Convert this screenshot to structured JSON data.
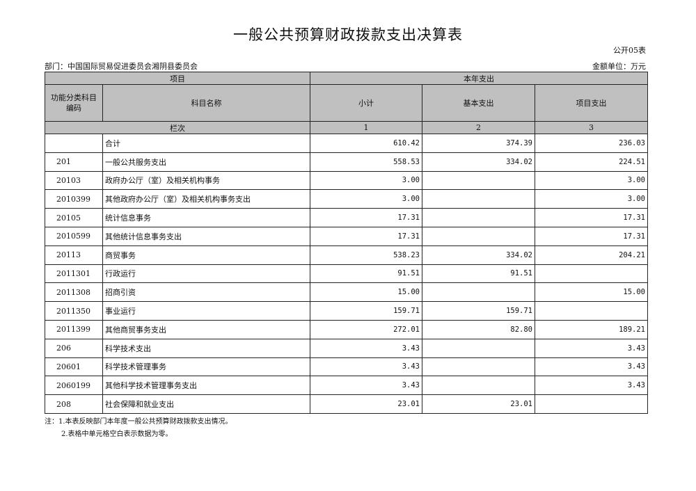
{
  "title": "一般公共预算财政拨款支出决算表",
  "table_code": "公开05表",
  "department": "部门：中国国际贸易促进委员会湘阴县委员会",
  "unit": "金额单位：万元",
  "header": {
    "project": "项目",
    "current_year": "本年支出",
    "func_code": "功能分类科目编码",
    "subject_name": "科目名称",
    "subtotal": "小计",
    "basic": "基本支出",
    "project_exp": "项目支出",
    "column_index": "栏次",
    "col1": "1",
    "col2": "2",
    "col3": "3"
  },
  "rows": [
    {
      "code": "",
      "name": "合计",
      "subtotal": "610.42",
      "basic": "374.39",
      "project": "236.03"
    },
    {
      "code": "201",
      "name": "一般公共服务支出",
      "subtotal": "558.53",
      "basic": "334.02",
      "project": "224.51"
    },
    {
      "code": "20103",
      "name": "政府办公厅（室）及相关机构事务",
      "subtotal": "3.00",
      "basic": "",
      "project": "3.00"
    },
    {
      "code": "2010399",
      "name": "其他政府办公厅（室）及相关机构事务支出",
      "subtotal": "3.00",
      "basic": "",
      "project": "3.00"
    },
    {
      "code": "20105",
      "name": "统计信息事务",
      "subtotal": "17.31",
      "basic": "",
      "project": "17.31"
    },
    {
      "code": "2010599",
      "name": "其他统计信息事务支出",
      "subtotal": "17.31",
      "basic": "",
      "project": "17.31"
    },
    {
      "code": "20113",
      "name": "商贸事务",
      "subtotal": "538.23",
      "basic": "334.02",
      "project": "204.21"
    },
    {
      "code": "2011301",
      "name": "行政运行",
      "subtotal": "91.51",
      "basic": "91.51",
      "project": ""
    },
    {
      "code": "2011308",
      "name": "招商引资",
      "subtotal": "15.00",
      "basic": "",
      "project": "15.00"
    },
    {
      "code": "2011350",
      "name": "事业运行",
      "subtotal": "159.71",
      "basic": "159.71",
      "project": ""
    },
    {
      "code": "2011399",
      "name": "其他商贸事务支出",
      "subtotal": "272.01",
      "basic": "82.80",
      "project": "189.21"
    },
    {
      "code": "206",
      "name": "科学技术支出",
      "subtotal": "3.43",
      "basic": "",
      "project": "3.43"
    },
    {
      "code": "20601",
      "name": "科学技术管理事务",
      "subtotal": "3.43",
      "basic": "",
      "project": "3.43"
    },
    {
      "code": "2060199",
      "name": "其他科学技术管理事务支出",
      "subtotal": "3.43",
      "basic": "",
      "project": "3.43"
    },
    {
      "code": "208",
      "name": "社会保障和就业支出",
      "subtotal": "23.01",
      "basic": "23.01",
      "project": ""
    }
  ],
  "notes": [
    "注：1.本表反映部门本年度一般公共预算财政拨款支出情况。",
    "2.表格中单元格空白表示数据为零。"
  ]
}
